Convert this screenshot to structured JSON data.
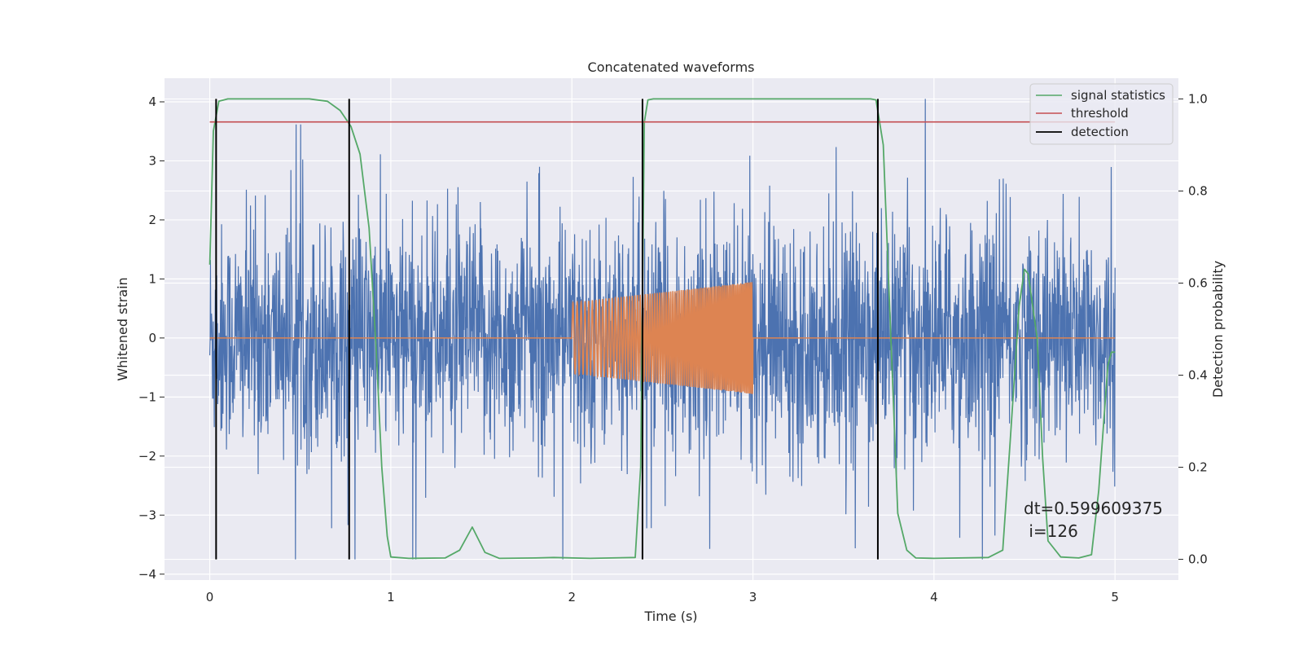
{
  "chart_data": {
    "type": "line",
    "title": "Concatenated waveforms",
    "xlabel": "Time (s)",
    "ylabel": "Whitened strain",
    "y2label": "Detection probability",
    "xlim": [
      -0.25,
      5.35
    ],
    "ylim": [
      -4.1,
      4.4
    ],
    "y2lim": [
      -0.045,
      1.045
    ],
    "xticks": [
      0,
      1,
      2,
      3,
      4,
      5
    ],
    "xticklabels": [
      "0",
      "1",
      "2",
      "3",
      "4",
      "5"
    ],
    "yticks": [
      -4,
      -3,
      -2,
      -1,
      0,
      1,
      2,
      3,
      4
    ],
    "yticklabels": [
      "−4",
      "−3",
      "−2",
      "−1",
      "0",
      "1",
      "2",
      "3",
      "4"
    ],
    "y2ticks": [
      0.0,
      0.2,
      0.4,
      0.6,
      0.8,
      1.0
    ],
    "y2ticklabels": [
      "0.0",
      "0.2",
      "0.4",
      "0.6",
      "0.8",
      "1.0"
    ],
    "grid": true,
    "legend_position": "top-right",
    "colors": {
      "background": "#eaeaf2",
      "grid": "#ffffff",
      "strain": "#4c72b0",
      "template": "#dd8452",
      "signal_statistics": "#55a868",
      "threshold": "#c44e52",
      "detection": "#000000"
    },
    "series": [
      {
        "name": "",
        "axis": "left",
        "kind": "noise",
        "x_range": [
          0,
          5
        ],
        "typical_amplitude": [
          -2.2,
          2.2
        ],
        "extremes": [
          -3.75,
          4.05
        ]
      },
      {
        "name": "",
        "axis": "left",
        "kind": "chirp",
        "baseline": 0,
        "segment": [
          2.0,
          3.0
        ],
        "amplitude": [
          0.6,
          0.95
        ]
      },
      {
        "name": "signal statistics",
        "axis": "right",
        "x": [
          0,
          0.02,
          0.05,
          0.1,
          0.2,
          0.4,
          0.55,
          0.65,
          0.72,
          0.78,
          0.83,
          0.88,
          0.92,
          0.95,
          0.98,
          1.0,
          1.1,
          1.3,
          1.38,
          1.45,
          1.52,
          1.6,
          1.8,
          1.9,
          2.1,
          2.35,
          2.38,
          2.4,
          2.42,
          2.45,
          2.6,
          3.0,
          3.5,
          3.65,
          3.68,
          3.72,
          3.76,
          3.8,
          3.85,
          3.9,
          4.0,
          4.3,
          4.38,
          4.42,
          4.47,
          4.5,
          4.52,
          4.57,
          4.6,
          4.63,
          4.7,
          4.8,
          4.87,
          4.91,
          4.96,
          4.98,
          5.0
        ],
        "y": [
          0.64,
          0.93,
          0.995,
          1.0,
          1.0,
          1.0,
          1.0,
          0.995,
          0.975,
          0.94,
          0.88,
          0.72,
          0.45,
          0.2,
          0.05,
          0.005,
          0.002,
          0.003,
          0.02,
          0.07,
          0.015,
          0.002,
          0.003,
          0.004,
          0.002,
          0.004,
          0.2,
          0.95,
          0.998,
          1.0,
          1.0,
          1.0,
          1.0,
          1.0,
          0.998,
          0.9,
          0.5,
          0.1,
          0.02,
          0.003,
          0.002,
          0.004,
          0.02,
          0.25,
          0.55,
          0.63,
          0.62,
          0.48,
          0.22,
          0.04,
          0.005,
          0.003,
          0.01,
          0.15,
          0.42,
          0.45,
          0.45
        ]
      },
      {
        "name": "threshold",
        "axis": "right",
        "x": [
          0,
          5
        ],
        "y": [
          0.95,
          0.95
        ]
      },
      {
        "name": "detection",
        "axis": "right",
        "x_positions": [
          0.035,
          0.77,
          2.39,
          3.69
        ],
        "y_range": [
          0,
          1.0
        ]
      }
    ],
    "legend": [
      "signal statistics",
      "threshold",
      "detection"
    ],
    "annotation": {
      "line1": "dt=0.599609375",
      "line2": " i=126",
      "x": 4.5,
      "y": -3.3
    }
  }
}
